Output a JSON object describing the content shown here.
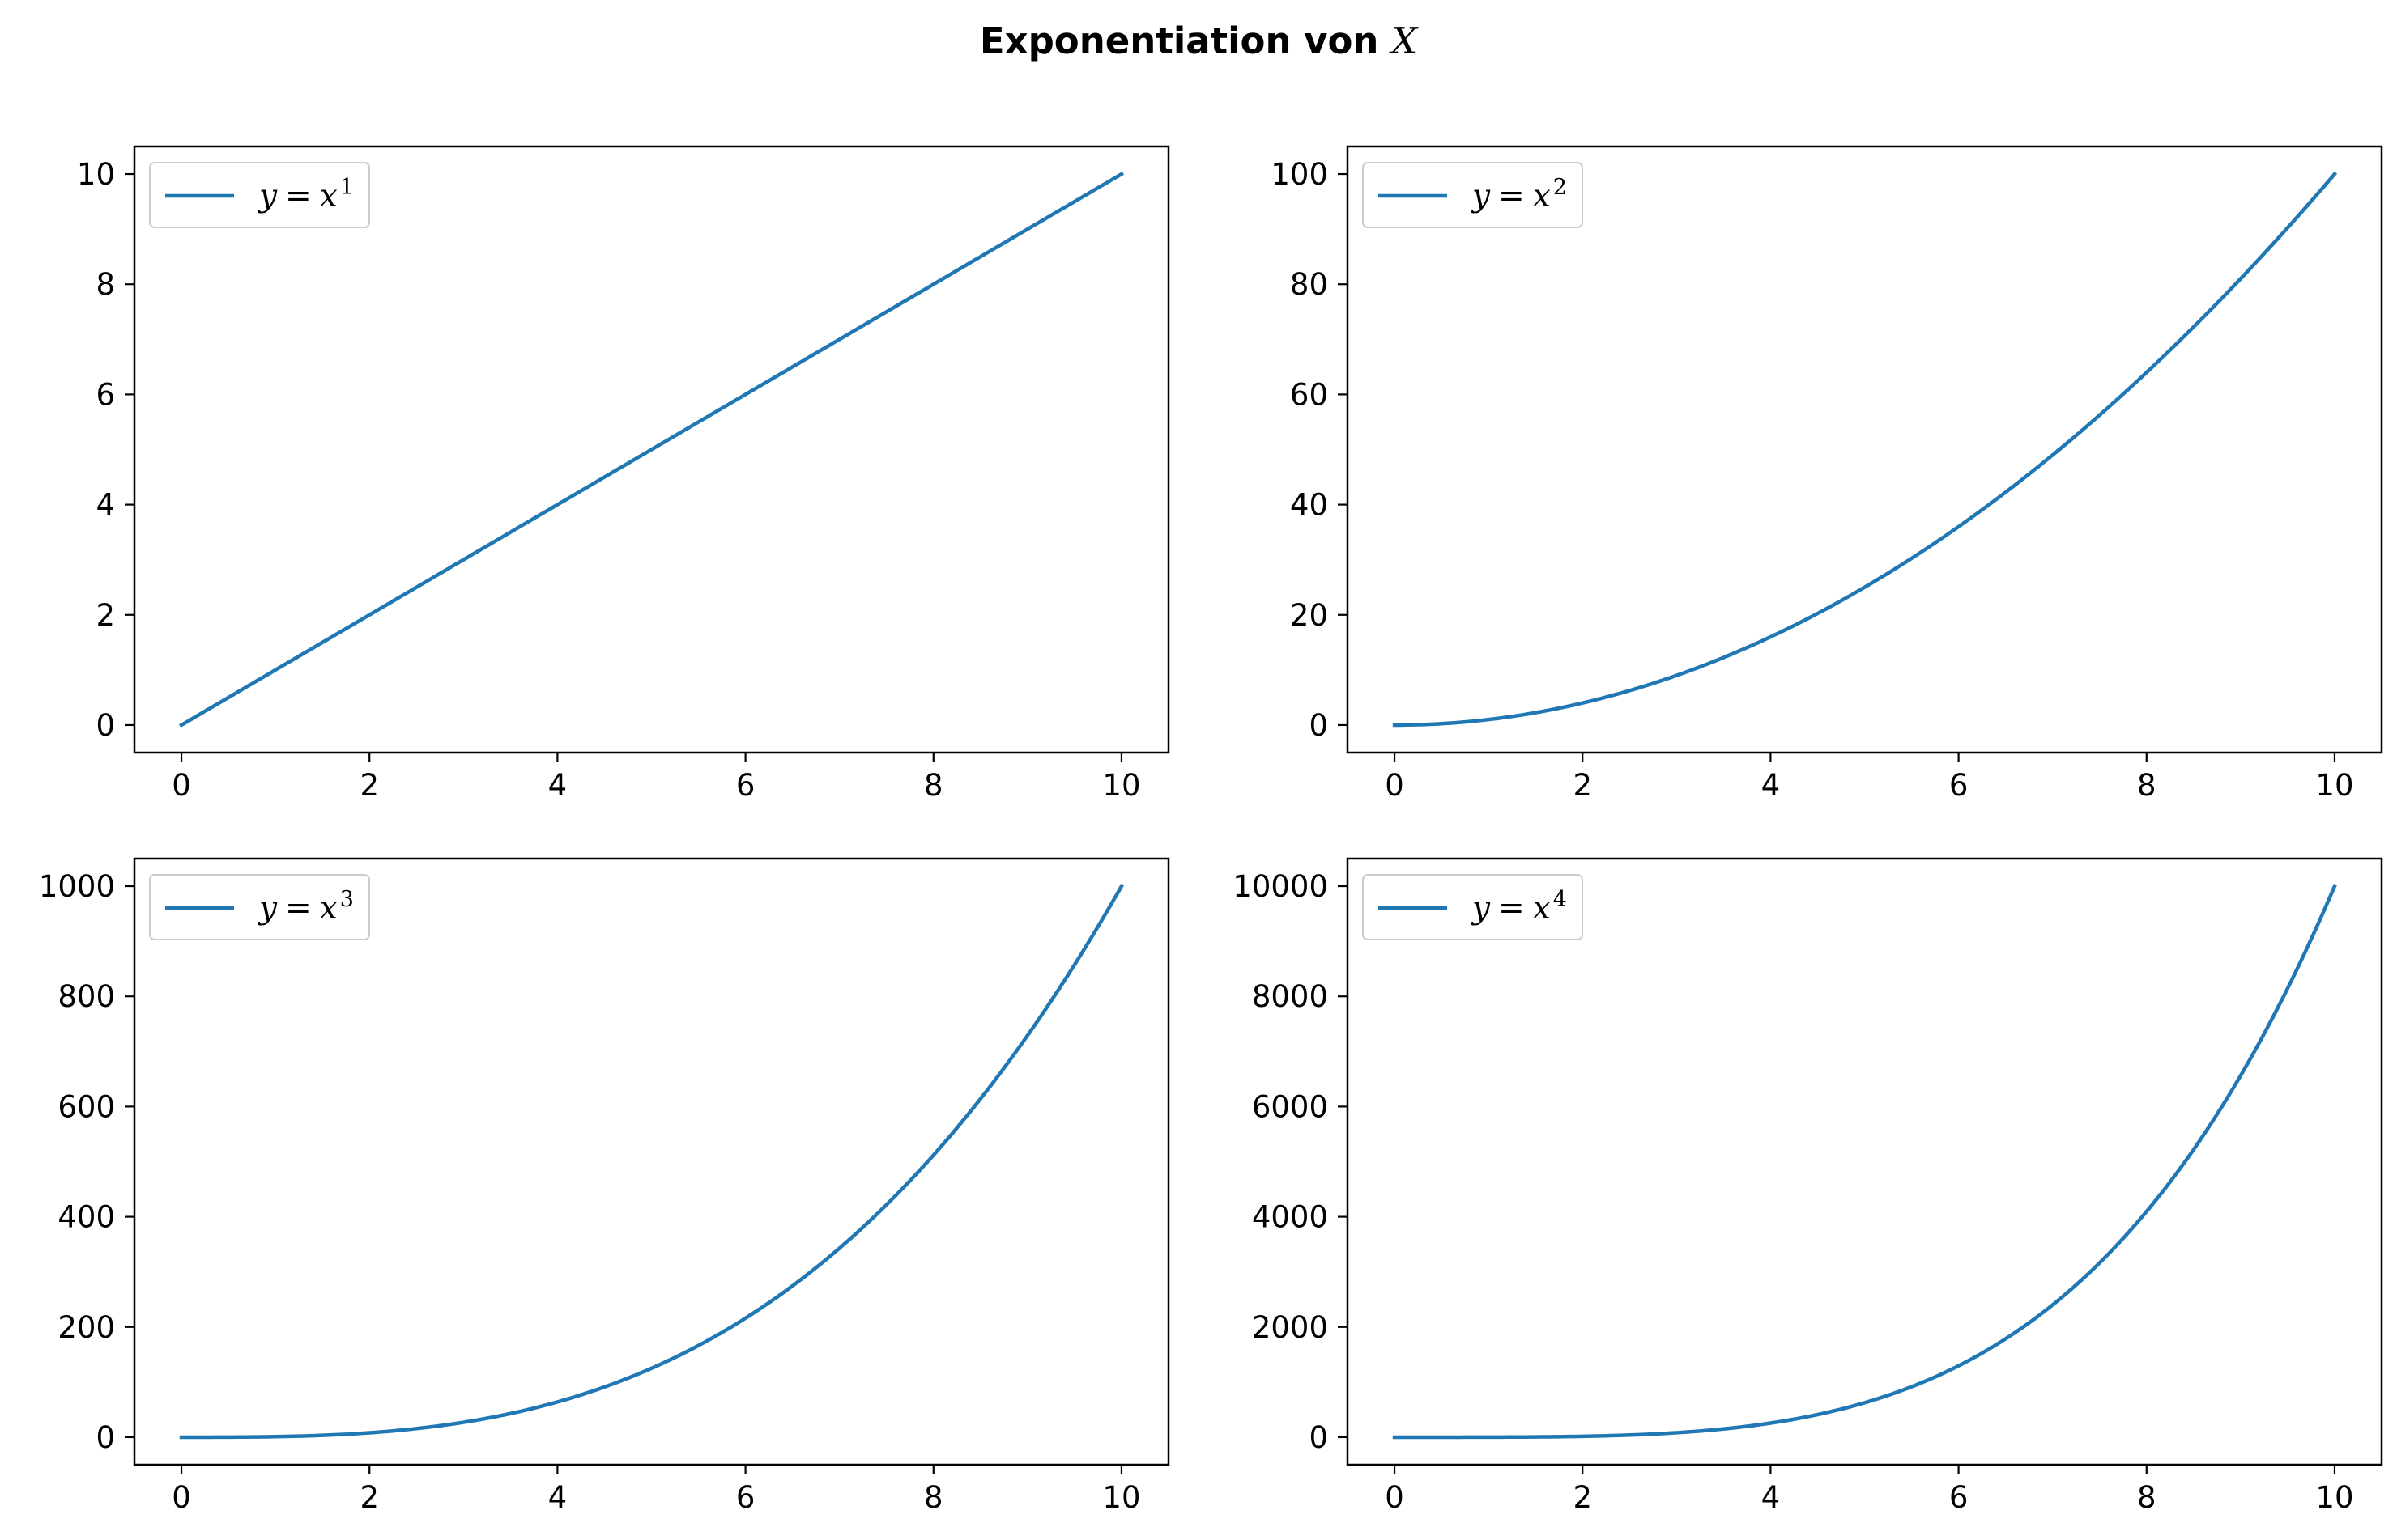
{
  "figure": {
    "title_text": "Exponentiation von ",
    "title_math": "X"
  },
  "chart_data": [
    {
      "type": "line",
      "xlim": [
        -0.5,
        10.5
      ],
      "ylim": [
        -0.5,
        10.5
      ],
      "xticks": [
        0,
        2,
        4,
        6,
        8,
        10
      ],
      "yticks": [
        0,
        2,
        4,
        6,
        8,
        10
      ],
      "legend_position": "upper-left",
      "series": [
        {
          "name": "y = x^1",
          "label_base": "y",
          "label_eq": "=",
          "label_var": "x",
          "label_exp": "1",
          "exponent": 1,
          "x_range": [
            0,
            10
          ],
          "color": "#1f77b4"
        }
      ]
    },
    {
      "type": "line",
      "xlim": [
        -0.5,
        10.5
      ],
      "ylim": [
        -5,
        105
      ],
      "xticks": [
        0,
        2,
        4,
        6,
        8,
        10
      ],
      "yticks": [
        0,
        20,
        40,
        60,
        80,
        100
      ],
      "legend_position": "upper-left",
      "series": [
        {
          "name": "y = x^2",
          "label_base": "y",
          "label_eq": "=",
          "label_var": "x",
          "label_exp": "2",
          "exponent": 2,
          "x_range": [
            0,
            10
          ],
          "color": "#1f77b4"
        }
      ]
    },
    {
      "type": "line",
      "xlim": [
        -0.5,
        10.5
      ],
      "ylim": [
        -50,
        1050
      ],
      "xticks": [
        0,
        2,
        4,
        6,
        8,
        10
      ],
      "yticks": [
        0,
        200,
        400,
        600,
        800,
        1000
      ],
      "legend_position": "upper-left",
      "series": [
        {
          "name": "y = x^3",
          "label_base": "y",
          "label_eq": "=",
          "label_var": "x",
          "label_exp": "3",
          "exponent": 3,
          "x_range": [
            0,
            10
          ],
          "color": "#1f77b4"
        }
      ]
    },
    {
      "type": "line",
      "xlim": [
        -0.5,
        10.5
      ],
      "ylim": [
        -500,
        10500
      ],
      "xticks": [
        0,
        2,
        4,
        6,
        8,
        10
      ],
      "yticks": [
        0,
        2000,
        4000,
        6000,
        8000,
        10000
      ],
      "legend_position": "upper-left",
      "series": [
        {
          "name": "y = x^4",
          "label_base": "y",
          "label_eq": "=",
          "label_var": "x",
          "label_exp": "4",
          "exponent": 4,
          "x_range": [
            0,
            10
          ],
          "color": "#1f77b4"
        }
      ]
    }
  ]
}
